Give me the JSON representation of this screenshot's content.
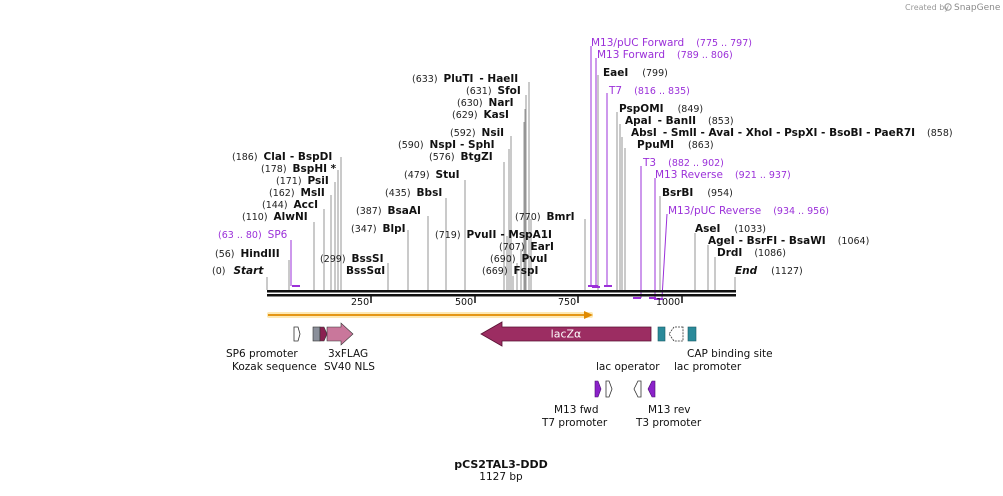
{
  "credit": {
    "prefix": "Created by",
    "brand": "SnapGene"
  },
  "map": {
    "name": "pCS2TAL3-DDD",
    "length": "1127 bp",
    "total_bp": 1127
  },
  "ruler": {
    "ticks": [
      "250",
      "500",
      "750",
      "1000"
    ]
  },
  "ends": {
    "start": {
      "pos": "(0)",
      "label": "Start"
    },
    "end": {
      "label": "End",
      "pos": "(1127)"
    }
  },
  "enzymes": [
    {
      "pos": "(56)",
      "label": "HindIII"
    },
    {
      "pos": "(110)",
      "label": "AlwNI"
    },
    {
      "pos": "(144)",
      "label": "AccI"
    },
    {
      "pos": "(162)",
      "label": "MslI"
    },
    {
      "pos": "(171)",
      "label": "PsiI"
    },
    {
      "pos": "(178)",
      "label": "BspHI *"
    },
    {
      "pos": "(186)",
      "label": "ClaI",
      "extra": "- BspDI"
    },
    {
      "pos": "(299)",
      "label": "BssSI",
      "label2": "BssSαI"
    },
    {
      "pos": "(347)",
      "label": "BlpI"
    },
    {
      "pos": "(387)",
      "label": "BsaAI"
    },
    {
      "pos": "(435)",
      "label": "BbsI"
    },
    {
      "pos": "(479)",
      "label": "StuI"
    },
    {
      "pos": "(576)",
      "label": "BtgZI"
    },
    {
      "pos": "(590)",
      "label": "NspI",
      "extra": "- SphI"
    },
    {
      "pos": "(592)",
      "label": "NsiI"
    },
    {
      "pos": "(629)",
      "label": "KasI"
    },
    {
      "pos": "(630)",
      "label": "NarI"
    },
    {
      "pos": "(631)",
      "label": "SfoI"
    },
    {
      "pos": "(633)",
      "label": "PluTI",
      "extra": "- HaeII"
    },
    {
      "pos": "(669)",
      "label": "FspI"
    },
    {
      "pos": "(690)",
      "label": "PvuI"
    },
    {
      "pos": "(707)",
      "label": "EarI"
    },
    {
      "pos": "(719)",
      "label": "PvuII",
      "extra": "- MspA1I"
    },
    {
      "pos": "(770)",
      "label": "BmrI"
    },
    {
      "pos": "(799)",
      "label": "EaeI"
    },
    {
      "pos": "(849)",
      "label": "PspOMI"
    },
    {
      "pos": "(853)",
      "label": "ApaI",
      "extra": "- BanII"
    },
    {
      "pos": "(858)",
      "label": "AbsI",
      "extra": "- SmlI - AvaI - XhoI - PspXI - BsoBI - PaeR7I"
    },
    {
      "pos": "(863)",
      "label": "PpuMI"
    },
    {
      "pos": "(954)",
      "label": "BsrBI"
    },
    {
      "pos": "(1033)",
      "label": "AseI"
    },
    {
      "pos": "(1064)",
      "label": "AgeI",
      "extra": "- BsrFI - BsaWI"
    },
    {
      "pos": "(1086)",
      "label": "DrdI"
    }
  ],
  "primers": [
    {
      "label": "SP6",
      "range": "(63 .. 80)"
    },
    {
      "label": "M13/pUC Forward",
      "range": "(775 .. 797)"
    },
    {
      "label": "M13 Forward",
      "range": "(789 .. 806)"
    },
    {
      "label": "T7",
      "range": "(816 .. 835)"
    },
    {
      "label": "T3",
      "range": "(882 .. 902)"
    },
    {
      "label": "M13 Reverse",
      "range": "(921 .. 937)"
    },
    {
      "label": "M13/pUC Reverse",
      "range": "(934 .. 956)"
    }
  ],
  "features": {
    "lacz": "lacZα",
    "sp6_promoter": "SP6 promoter",
    "kozak": "Kozak sequence",
    "flag": "3xFLAG",
    "sv40": "SV40 NLS",
    "lac_operator": "lac operator",
    "cap_site": "CAP binding site",
    "lac_promoter": "lac promoter",
    "m13_fwd": "M13 fwd",
    "t7_promoter": "T7 promoter",
    "m13_rev": "M13 rev",
    "t3_promoter": "T3 promoter"
  },
  "colors": {
    "primer": "#9b30d9",
    "lacz": "#9c2d62",
    "flag": "#c9779b",
    "kozak": "#8a2050",
    "cap": "#2a8a9a",
    "orf": "#f5c24a"
  }
}
